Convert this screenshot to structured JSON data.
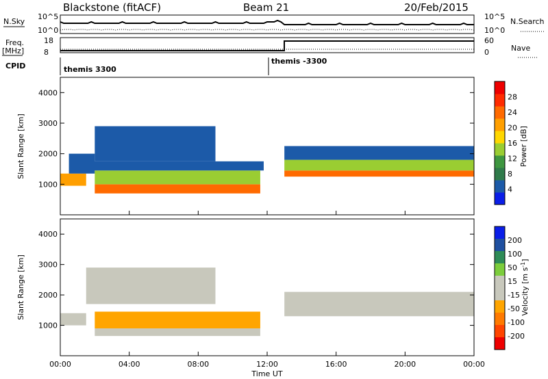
{
  "header": {
    "radar": "Blackstone (fitACF)",
    "beam": "Beam 21",
    "date": "20/Feb/2015"
  },
  "strip": {
    "nsky_label": "N.Sky",
    "nsky_ticks": [
      "10^5",
      "10^0"
    ],
    "nsearch_label": "N.Search",
    "freq_label": "Freq.",
    "freq_unit": "[MHz]",
    "freq_ticks": [
      "18",
      "8"
    ],
    "nave_label": "Nave",
    "nave_ticks": [
      "60",
      "0"
    ],
    "cpid_label": "CPID",
    "cpid_segments": [
      "themis 3300",
      "themis -3300"
    ]
  },
  "colors": {
    "power": [
      "#0a1ee8",
      "#1c5aa8",
      "#2f7a4a",
      "#3e9640",
      "#9acd32",
      "#ffd700",
      "#ff9f00",
      "#ff6a00",
      "#ff2b00",
      "#ee0000"
    ],
    "velocity": [
      "#0a1ee8",
      "#1f50a0",
      "#2e8b57",
      "#7ccd3c",
      "#c8c8bc",
      "#c8c8bc",
      "#ffa500",
      "#ff7a00",
      "#ff4500",
      "#ee0000"
    ],
    "grey": "#c8c8bc"
  },
  "chart_data": [
    {
      "type": "heatmap",
      "panel": "power",
      "ylabel": "Slant Range [km]",
      "y_ticks": [
        1000,
        2000,
        3000,
        4000
      ],
      "ylim": [
        0,
        4500
      ],
      "xlim_hours": [
        0,
        24
      ],
      "colorbar_label": "Power [dB]",
      "colorbar_ticks": [
        "4",
        "8",
        "12",
        "16",
        "20",
        "24",
        "28"
      ],
      "colorbar_range": [
        0,
        32
      ],
      "echo_bands": [
        {
          "t_start": 0.0,
          "t_end": 1.5,
          "range_low": 950,
          "range_high": 1350,
          "value": 20
        },
        {
          "t_start": 0.5,
          "t_end": 2.0,
          "range_low": 1350,
          "range_high": 2000,
          "value": 6
        },
        {
          "t_start": 2.0,
          "t_end": 11.6,
          "range_low": 700,
          "range_high": 1000,
          "value": 24
        },
        {
          "t_start": 2.0,
          "t_end": 11.6,
          "range_low": 1000,
          "range_high": 1450,
          "value": 14
        },
        {
          "t_start": 1.5,
          "t_end": 11.8,
          "range_low": 1450,
          "range_high": 1750,
          "value": 6
        },
        {
          "t_start": 2.0,
          "t_end": 9.0,
          "range_low": 1750,
          "range_high": 2900,
          "value": 6
        },
        {
          "t_start": 13.0,
          "t_end": 24.0,
          "range_low": 1250,
          "range_high": 1450,
          "value": 24
        },
        {
          "t_start": 13.0,
          "t_end": 24.0,
          "range_low": 1450,
          "range_high": 1800,
          "value": 14
        },
        {
          "t_start": 13.0,
          "t_end": 24.0,
          "range_low": 1800,
          "range_high": 2250,
          "value": 6
        }
      ]
    },
    {
      "type": "heatmap",
      "panel": "velocity",
      "ylabel": "Slant Range [km]",
      "y_ticks": [
        1000,
        2000,
        3000,
        4000
      ],
      "ylim": [
        0,
        4500
      ],
      "xlim_hours": [
        0,
        24
      ],
      "xlabel": "Time UT",
      "x_ticks": [
        "00:00",
        "04:00",
        "08:00",
        "12:00",
        "16:00",
        "20:00",
        "00:00"
      ],
      "colorbar_label": "Velocity [m s^-1]",
      "colorbar_ticks": [
        "200",
        "100",
        "50",
        "15",
        "-15",
        "-50",
        "-100",
        "-200"
      ],
      "echo_bands": [
        {
          "t_start": 0.0,
          "t_end": 1.5,
          "range_low": 1000,
          "range_high": 1400,
          "value": 0
        },
        {
          "t_start": 2.0,
          "t_end": 11.6,
          "range_low": 900,
          "range_high": 1450,
          "value": -40
        },
        {
          "t_start": 2.0,
          "t_end": 11.6,
          "range_low": 650,
          "range_high": 900,
          "value": 0
        },
        {
          "t_start": 1.5,
          "t_end": 9.0,
          "range_low": 1700,
          "range_high": 2900,
          "value": 0
        },
        {
          "t_start": 13.0,
          "t_end": 24.0,
          "range_low": 1300,
          "range_high": 2100,
          "value": 0
        }
      ]
    }
  ]
}
